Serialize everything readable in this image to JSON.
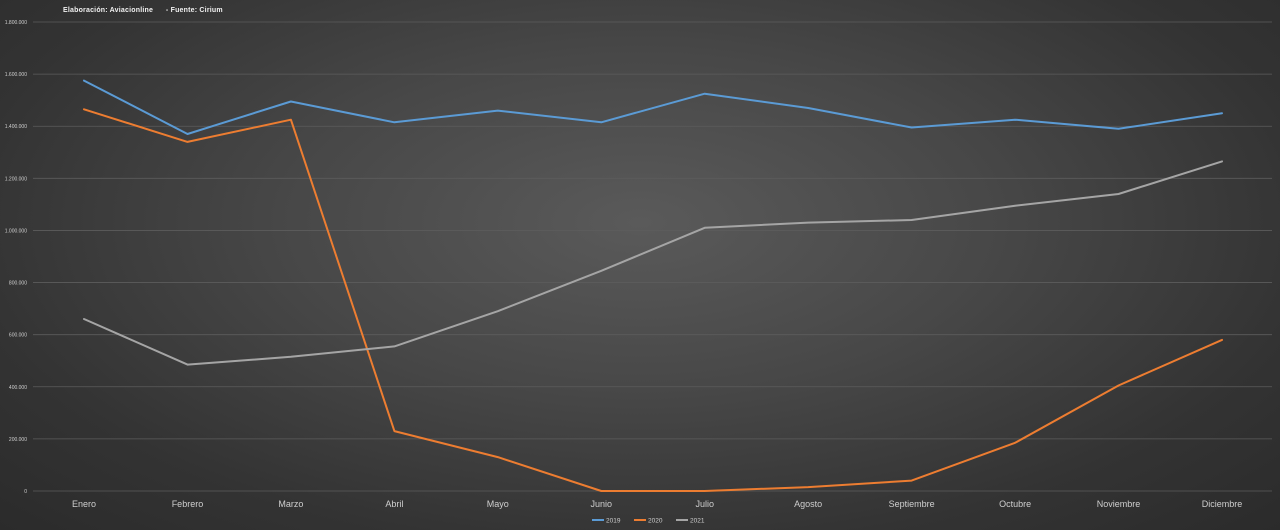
{
  "header": {
    "source_note": "Elaboración: Aviacionline      - Fuente: Cirium"
  },
  "colors": {
    "series_2019": "#5b9bd5",
    "series_2020": "#ed7d31",
    "series_2021": "#a5a5a5",
    "gridline": "#5c5c5c",
    "tick_text": "#cfcfcf"
  },
  "chart_data": {
    "type": "line",
    "categories": [
      "Enero",
      "Febrero",
      "Marzo",
      "Abril",
      "Mayo",
      "Junio",
      "Julio",
      "Agosto",
      "Septiembre",
      "Octubre",
      "Noviembre",
      "Diciembre"
    ],
    "ylim": [
      0,
      1800000
    ],
    "yticks": [
      0,
      200000,
      400000,
      600000,
      800000,
      1000000,
      1200000,
      1400000,
      1600000,
      1800000
    ],
    "ytick_labels": [
      "0",
      "200.000",
      "400.000",
      "600.000",
      "800.000",
      "1.000.000",
      "1.200.000",
      "1.400.000",
      "1.600.000",
      "1.800.000"
    ],
    "grid": true,
    "legend_position": "bottom",
    "series": [
      {
        "name": "2019",
        "values": [
          1575000,
          1370000,
          1495000,
          1415000,
          1460000,
          1415000,
          1525000,
          1470000,
          1395000,
          1425000,
          1390000,
          1450000
        ]
      },
      {
        "name": "2020",
        "values": [
          1465000,
          1340000,
          1425000,
          230000,
          130000,
          0,
          0,
          15000,
          40000,
          185000,
          405000,
          580000
        ]
      },
      {
        "name": "2021",
        "values": [
          660000,
          485000,
          515000,
          555000,
          690000,
          845000,
          1010000,
          1030000,
          1040000,
          1095000,
          1140000,
          1265000
        ]
      }
    ]
  }
}
